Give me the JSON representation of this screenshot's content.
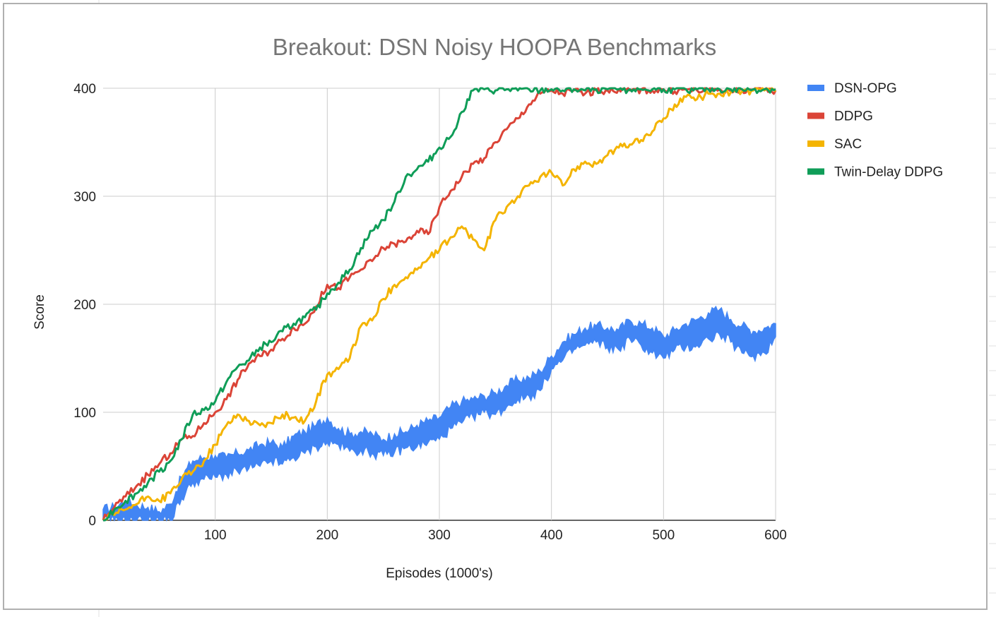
{
  "chart_data": {
    "type": "line",
    "title": "Breakout: DSN Noisy HOOPA Benchmarks",
    "xlabel": "Episodes (1000's)",
    "ylabel": "Score",
    "xlim": [
      0,
      600
    ],
    "ylim": [
      0,
      400
    ],
    "xticks": [
      100,
      200,
      300,
      400,
      500,
      600
    ],
    "yticks": [
      0,
      100,
      200,
      300,
      400
    ],
    "x_tick_labels": [
      "100",
      "200",
      "300",
      "400",
      "500",
      "600"
    ],
    "y_tick_labels": [
      "0",
      "100",
      "200",
      "300",
      "400"
    ],
    "grid": true,
    "legend_position": "right",
    "series": [
      {
        "name": "DSN-OPG",
        "color": "#4285F4",
        "style": "band",
        "x": [
          0,
          10,
          20,
          30,
          40,
          50,
          60,
          70,
          80,
          90,
          100,
          110,
          120,
          130,
          140,
          150,
          160,
          170,
          180,
          190,
          200,
          210,
          220,
          230,
          240,
          250,
          260,
          270,
          280,
          290,
          300,
          310,
          320,
          330,
          340,
          350,
          360,
          370,
          380,
          390,
          400,
          410,
          420,
          430,
          440,
          450,
          460,
          470,
          480,
          490,
          500,
          510,
          520,
          530,
          540,
          550,
          560,
          570,
          580,
          590,
          600
        ],
        "low": [
          0,
          0,
          0,
          0,
          0,
          0,
          0,
          20,
          35,
          38,
          40,
          42,
          45,
          48,
          50,
          55,
          52,
          58,
          62,
          68,
          72,
          70,
          64,
          65,
          62,
          60,
          63,
          67,
          68,
          72,
          75,
          85,
          90,
          96,
          100,
          98,
          105,
          112,
          115,
          120,
          140,
          148,
          158,
          162,
          165,
          160,
          158,
          168,
          162,
          155,
          150,
          158,
          160,
          162,
          168,
          172,
          165,
          155,
          152,
          155,
          170
        ],
        "high": [
          10,
          12,
          18,
          14,
          12,
          8,
          15,
          40,
          55,
          58,
          60,
          58,
          62,
          65,
          70,
          72,
          68,
          78,
          82,
          88,
          95,
          85,
          80,
          82,
          80,
          75,
          80,
          82,
          88,
          92,
          95,
          105,
          110,
          112,
          115,
          118,
          125,
          130,
          132,
          138,
          152,
          165,
          172,
          178,
          180,
          178,
          176,
          185,
          182,
          178,
          170,
          176,
          182,
          186,
          192,
          195,
          186,
          180,
          175,
          178,
          182
        ]
      },
      {
        "name": "DDPG",
        "color": "#DB4437",
        "style": "line",
        "x": [
          0,
          10,
          20,
          30,
          40,
          50,
          60,
          70,
          80,
          90,
          100,
          110,
          120,
          130,
          140,
          150,
          160,
          170,
          180,
          190,
          200,
          210,
          220,
          230,
          240,
          250,
          260,
          270,
          280,
          290,
          300,
          310,
          320,
          330,
          340,
          350,
          360,
          370,
          380,
          390,
          400,
          410,
          420,
          430,
          440,
          450,
          460,
          470,
          480,
          490,
          500,
          510,
          520,
          530,
          540,
          550,
          560,
          570,
          580,
          590,
          600
        ],
        "values": [
          0,
          12,
          22,
          32,
          42,
          52,
          62,
          75,
          78,
          90,
          100,
          112,
          130,
          145,
          152,
          158,
          168,
          178,
          182,
          198,
          218,
          215,
          225,
          232,
          240,
          252,
          256,
          258,
          268,
          265,
          290,
          305,
          318,
          330,
          335,
          350,
          362,
          372,
          385,
          395,
          398,
          395,
          398,
          395,
          398,
          398,
          399,
          398,
          399,
          398,
          399,
          397,
          399,
          398,
          399,
          399,
          397,
          399,
          398,
          399,
          398
        ]
      },
      {
        "name": "SAC",
        "color": "#F4B400",
        "style": "line",
        "x": [
          0,
          10,
          20,
          30,
          40,
          50,
          60,
          70,
          80,
          90,
          100,
          110,
          120,
          130,
          140,
          150,
          160,
          170,
          180,
          190,
          200,
          210,
          220,
          230,
          240,
          250,
          260,
          270,
          280,
          290,
          300,
          310,
          320,
          330,
          340,
          350,
          360,
          370,
          380,
          390,
          400,
          410,
          420,
          430,
          440,
          450,
          460,
          470,
          480,
          490,
          500,
          510,
          520,
          530,
          540,
          550,
          560,
          570,
          580,
          590,
          600
        ],
        "values": [
          0,
          5,
          10,
          15,
          22,
          18,
          25,
          38,
          45,
          55,
          70,
          88,
          98,
          92,
          88,
          90,
          98,
          95,
          92,
          110,
          135,
          140,
          150,
          180,
          185,
          205,
          218,
          225,
          232,
          242,
          250,
          262,
          272,
          260,
          250,
          278,
          290,
          300,
          310,
          318,
          322,
          310,
          325,
          332,
          330,
          338,
          345,
          348,
          352,
          360,
          372,
          385,
          392,
          390,
          395,
          395,
          396,
          397,
          398,
          398,
          397
        ]
      },
      {
        "name": "Twin-Delay DDPG",
        "color": "#0F9D58",
        "style": "line",
        "x": [
          0,
          10,
          20,
          30,
          40,
          50,
          60,
          70,
          80,
          90,
          100,
          110,
          120,
          130,
          140,
          150,
          160,
          170,
          180,
          190,
          200,
          210,
          220,
          230,
          240,
          250,
          260,
          270,
          280,
          290,
          300,
          310,
          320,
          330,
          340,
          350,
          360,
          370,
          380,
          390,
          400,
          410,
          420,
          430,
          440,
          450,
          460,
          470,
          480,
          490,
          500,
          510,
          520,
          530,
          540,
          550,
          560,
          570,
          580,
          590,
          600
        ],
        "values": [
          0,
          10,
          18,
          25,
          35,
          45,
          55,
          75,
          98,
          102,
          110,
          128,
          142,
          148,
          160,
          165,
          175,
          182,
          188,
          195,
          210,
          220,
          232,
          252,
          268,
          278,
          295,
          318,
          325,
          332,
          345,
          355,
          378,
          398,
          399,
          398,
          399,
          398,
          399,
          398,
          399,
          398,
          399,
          398,
          399,
          399,
          399,
          399,
          399,
          399,
          399,
          399,
          399,
          399,
          399,
          399,
          399,
          399,
          399,
          399,
          399
        ]
      }
    ]
  }
}
